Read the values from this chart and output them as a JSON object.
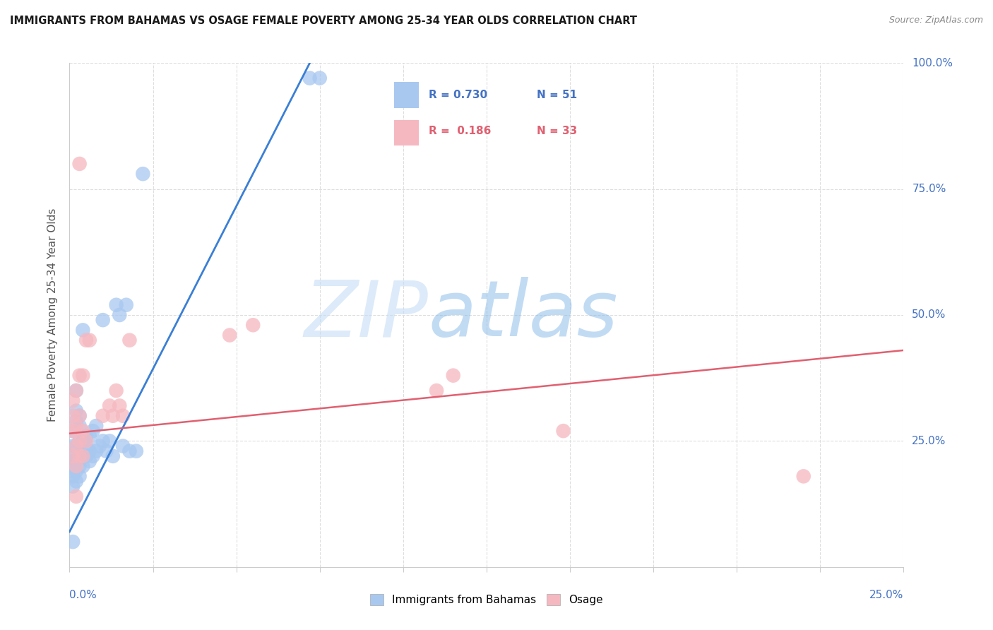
{
  "title": "IMMIGRANTS FROM BAHAMAS VS OSAGE FEMALE POVERTY AMONG 25-34 YEAR OLDS CORRELATION CHART",
  "source": "Source: ZipAtlas.com",
  "ylabel": "Female Poverty Among 25-34 Year Olds",
  "xlim": [
    0.0,
    0.25
  ],
  "ylim": [
    0.0,
    1.0
  ],
  "blue_color": "#a8c8f0",
  "pink_color": "#f5b8c0",
  "blue_line_color": "#3a7fd5",
  "pink_line_color": "#e06070",
  "blue_R": 0.73,
  "blue_N": 51,
  "pink_R": 0.186,
  "pink_N": 33,
  "watermark_zip": "ZIP",
  "watermark_atlas": "atlas",
  "blue_scatter_x": [
    0.001,
    0.001,
    0.001,
    0.001,
    0.001,
    0.001,
    0.001,
    0.001,
    0.002,
    0.002,
    0.002,
    0.002,
    0.002,
    0.002,
    0.002,
    0.003,
    0.003,
    0.003,
    0.003,
    0.003,
    0.003,
    0.004,
    0.004,
    0.004,
    0.004,
    0.005,
    0.005,
    0.005,
    0.006,
    0.006,
    0.006,
    0.007,
    0.007,
    0.008,
    0.008,
    0.009,
    0.01,
    0.01,
    0.011,
    0.012,
    0.013,
    0.014,
    0.015,
    0.016,
    0.017,
    0.018,
    0.02,
    0.022,
    0.072,
    0.075,
    0.001
  ],
  "blue_scatter_y": [
    0.16,
    0.18,
    0.19,
    0.2,
    0.21,
    0.22,
    0.24,
    0.27,
    0.17,
    0.19,
    0.21,
    0.24,
    0.29,
    0.31,
    0.35,
    0.18,
    0.2,
    0.22,
    0.25,
    0.28,
    0.3,
    0.2,
    0.22,
    0.25,
    0.47,
    0.22,
    0.24,
    0.26,
    0.21,
    0.23,
    0.26,
    0.22,
    0.27,
    0.23,
    0.28,
    0.24,
    0.25,
    0.49,
    0.23,
    0.25,
    0.22,
    0.52,
    0.5,
    0.24,
    0.52,
    0.23,
    0.23,
    0.78,
    0.97,
    0.97,
    0.05
  ],
  "pink_scatter_x": [
    0.001,
    0.001,
    0.001,
    0.001,
    0.002,
    0.002,
    0.002,
    0.002,
    0.003,
    0.003,
    0.003,
    0.003,
    0.004,
    0.004,
    0.004,
    0.005,
    0.005,
    0.006,
    0.01,
    0.012,
    0.013,
    0.014,
    0.015,
    0.016,
    0.018,
    0.048,
    0.055,
    0.11,
    0.115,
    0.148,
    0.003,
    0.002,
    0.22
  ],
  "pink_scatter_y": [
    0.22,
    0.27,
    0.3,
    0.33,
    0.2,
    0.24,
    0.28,
    0.35,
    0.22,
    0.25,
    0.3,
    0.38,
    0.22,
    0.27,
    0.38,
    0.25,
    0.45,
    0.45,
    0.3,
    0.32,
    0.3,
    0.35,
    0.32,
    0.3,
    0.45,
    0.46,
    0.48,
    0.35,
    0.38,
    0.27,
    0.8,
    0.14,
    0.18
  ],
  "blue_line_x": [
    0.0,
    0.072
  ],
  "blue_line_y": [
    0.07,
    1.0
  ],
  "pink_line_x": [
    0.0,
    0.25
  ],
  "pink_line_y": [
    0.265,
    0.43
  ]
}
